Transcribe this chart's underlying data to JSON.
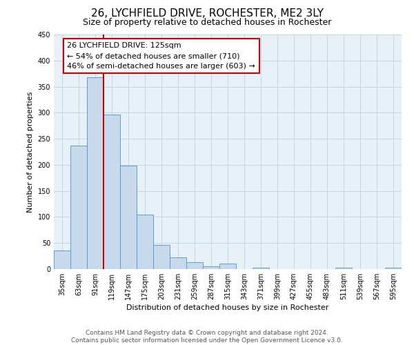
{
  "title": "26, LYCHFIELD DRIVE, ROCHESTER, ME2 3LY",
  "subtitle": "Size of property relative to detached houses in Rochester",
  "xlabel": "Distribution of detached houses by size in Rochester",
  "ylabel": "Number of detached properties",
  "bar_labels": [
    "35sqm",
    "63sqm",
    "91sqm",
    "119sqm",
    "147sqm",
    "175sqm",
    "203sqm",
    "231sqm",
    "259sqm",
    "287sqm",
    "315sqm",
    "343sqm",
    "371sqm",
    "399sqm",
    "427sqm",
    "455sqm",
    "483sqm",
    "511sqm",
    "539sqm",
    "567sqm",
    "595sqm"
  ],
  "bar_values": [
    36,
    237,
    368,
    297,
    199,
    105,
    46,
    22,
    13,
    5,
    10,
    0,
    3,
    0,
    0,
    0,
    0,
    3,
    0,
    0,
    2
  ],
  "bar_color": "#c9d9ec",
  "bar_edge_color": "#5b9bd5",
  "vline_x": 2.5,
  "vline_color": "#cc0000",
  "annotation_title": "26 LYCHFIELD DRIVE: 125sqm",
  "annotation_line1": "← 54% of detached houses are smaller (710)",
  "annotation_line2": "46% of semi-detached houses are larger (603) →",
  "annotation_box_edge": "#cc0000",
  "ylim": [
    0,
    450
  ],
  "yticks": [
    0,
    50,
    100,
    150,
    200,
    250,
    300,
    350,
    400,
    450
  ],
  "footnote1": "Contains HM Land Registry data © Crown copyright and database right 2024.",
  "footnote2": "Contains public sector information licensed under the Open Government Licence v3.0.",
  "bg_color": "#ffffff",
  "grid_color": "#c8d4e3",
  "title_fontsize": 11,
  "subtitle_fontsize": 9,
  "axis_label_fontsize": 8,
  "tick_fontsize": 7,
  "annotation_fontsize": 8,
  "footnote_fontsize": 6.5
}
